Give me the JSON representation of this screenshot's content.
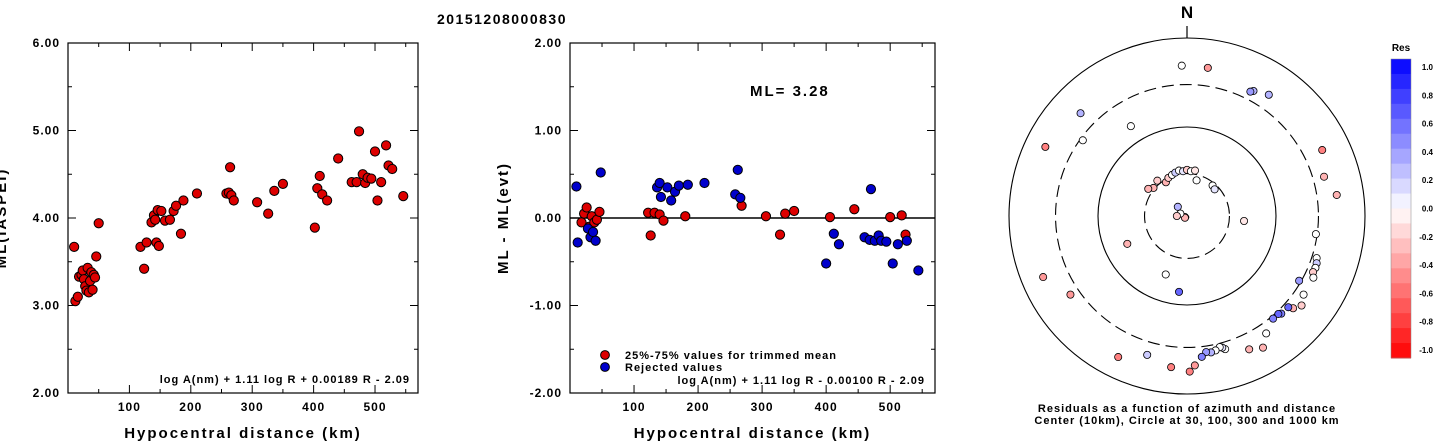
{
  "title": "20151208000830",
  "chart_data": [
    {
      "type": "scatter",
      "xlabel": "Hypocentral distance (km)",
      "ylabel": "ML(IASPEI)",
      "xlim": [
        0,
        570
      ],
      "ylim": [
        2.0,
        6.0
      ],
      "xticks": [
        "100",
        "200",
        "300",
        "400",
        "500"
      ],
      "yticks": [
        "2.00",
        "3.00",
        "4.00",
        "5.00",
        "6.00"
      ],
      "formula": "log A(nm) + 1.11 log R + 0.00189 R - 2.09",
      "series": [
        {
          "color": "#dd0000",
          "points": [
            [
              10,
              3.67
            ],
            [
              12,
              3.05
            ],
            [
              16,
              3.1
            ],
            [
              18,
              3.33
            ],
            [
              22,
              3.35
            ],
            [
              24,
              3.4
            ],
            [
              26,
              3.3
            ],
            [
              28,
              3.22
            ],
            [
              30,
              3.17
            ],
            [
              32,
              3.43
            ],
            [
              34,
              3.15
            ],
            [
              36,
              3.28
            ],
            [
              38,
              3.38
            ],
            [
              40,
              3.18
            ],
            [
              42,
              3.35
            ],
            [
              44,
              3.32
            ],
            [
              46,
              3.56
            ],
            [
              50,
              3.94
            ],
            [
              118,
              3.67
            ],
            [
              124,
              3.42
            ],
            [
              128,
              3.72
            ],
            [
              136,
              3.95
            ],
            [
              140,
              4.03
            ],
            [
              142,
              3.98
            ],
            [
              144,
              3.72
            ],
            [
              146,
              4.09
            ],
            [
              148,
              3.68
            ],
            [
              152,
              4.08
            ],
            [
              158,
              3.97
            ],
            [
              166,
              3.98
            ],
            [
              172,
              4.08
            ],
            [
              176,
              4.14
            ],
            [
              184,
              3.82
            ],
            [
              188,
              4.2
            ],
            [
              210,
              4.28
            ],
            [
              258,
              4.28
            ],
            [
              262,
              4.29
            ],
            [
              264,
              4.58
            ],
            [
              266,
              4.26
            ],
            [
              270,
              4.2
            ],
            [
              308,
              4.18
            ],
            [
              326,
              4.05
            ],
            [
              336,
              4.31
            ],
            [
              350,
              4.39
            ],
            [
              402,
              3.89
            ],
            [
              406,
              4.34
            ],
            [
              410,
              4.48
            ],
            [
              414,
              4.27
            ],
            [
              422,
              4.2
            ],
            [
              440,
              4.68
            ],
            [
              462,
              4.41
            ],
            [
              470,
              4.41
            ],
            [
              474,
              4.99
            ],
            [
              480,
              4.5
            ],
            [
              484,
              4.4
            ],
            [
              488,
              4.46
            ],
            [
              494,
              4.45
            ],
            [
              500,
              4.76
            ],
            [
              504,
              4.2
            ],
            [
              510,
              4.41
            ],
            [
              518,
              4.83
            ],
            [
              522,
              4.6
            ],
            [
              528,
              4.56
            ],
            [
              546,
              4.25
            ]
          ]
        }
      ]
    },
    {
      "type": "scatter",
      "xlabel": "Hypocentral distance (km)",
      "ylabel": "ML - ML(evt)",
      "xlim": [
        0,
        570
      ],
      "ylim": [
        -2.0,
        2.0
      ],
      "xticks": [
        "100",
        "200",
        "300",
        "400",
        "500"
      ],
      "yticks": [
        "-2.00",
        "-1.00",
        "0.00",
        "1.00",
        "2.00"
      ],
      "annotation": "ML= 3.28",
      "formula": "log A(nm) + 1.11 log R - 0.00100 R - 2.09",
      "legend": [
        "25%-75% values for trimmed mean",
        "Rejected values"
      ],
      "series": [
        {
          "name": "25%-75% values for trimmed mean",
          "color": "#dd0000",
          "points": [
            [
              18,
              -0.05
            ],
            [
              22,
              0.05
            ],
            [
              26,
              0.12
            ],
            [
              30,
              -0.1
            ],
            [
              34,
              0.02
            ],
            [
              38,
              -0.05
            ],
            [
              42,
              -0.02
            ],
            [
              46,
              0.07
            ],
            [
              122,
              0.06
            ],
            [
              126,
              -0.2
            ],
            [
              132,
              0.06
            ],
            [
              140,
              0.04
            ],
            [
              146,
              -0.03
            ],
            [
              180,
              0.02
            ],
            [
              268,
              0.14
            ],
            [
              306,
              0.02
            ],
            [
              328,
              -0.19
            ],
            [
              336,
              0.05
            ],
            [
              350,
              0.08
            ],
            [
              406,
              0.01
            ],
            [
              444,
              0.1
            ],
            [
              500,
              0.01
            ],
            [
              518,
              0.03
            ],
            [
              524,
              -0.19
            ]
          ]
        },
        {
          "name": "Rejected values",
          "color": "#0000cc",
          "points": [
            [
              10,
              0.36
            ],
            [
              12,
              -0.28
            ],
            [
              28,
              -0.12
            ],
            [
              32,
              -0.22
            ],
            [
              36,
              -0.16
            ],
            [
              40,
              -0.26
            ],
            [
              48,
              0.52
            ],
            [
              136,
              0.35
            ],
            [
              140,
              0.4
            ],
            [
              142,
              0.24
            ],
            [
              152,
              0.35
            ],
            [
              158,
              0.2
            ],
            [
              164,
              0.3
            ],
            [
              170,
              0.37
            ],
            [
              184,
              0.38
            ],
            [
              210,
              0.4
            ],
            [
              258,
              0.27
            ],
            [
              262,
              0.55
            ],
            [
              266,
              0.23
            ],
            [
              400,
              -0.52
            ],
            [
              412,
              -0.18
            ],
            [
              420,
              -0.3
            ],
            [
              460,
              -0.22
            ],
            [
              468,
              -0.25
            ],
            [
              470,
              0.33
            ],
            [
              476,
              -0.26
            ],
            [
              482,
              -0.2
            ],
            [
              486,
              -0.26
            ],
            [
              494,
              -0.27
            ],
            [
              504,
              -0.52
            ],
            [
              512,
              -0.3
            ],
            [
              526,
              -0.26
            ],
            [
              544,
              -0.6
            ]
          ]
        }
      ]
    },
    {
      "type": "polar-scatter",
      "north_label": "N",
      "caption_line1": "Residuals as a function of azimuth and distance",
      "caption_line2": "Center (10km), Circle at 30, 100, 300 and 1000 km",
      "colorbar_title": "Res",
      "colorbar_ticks": [
        "1.0",
        "0.8",
        "0.6",
        "0.4",
        "0.2",
        "0.0",
        "-0.2",
        "-0.4",
        "-0.6",
        "-0.8",
        "-1.0"
      ],
      "stations": [
        {
          "az": 174,
          "dist": 4,
          "res": 1.0,
          "solid": true
        },
        {
          "az": 245,
          "dist": 8,
          "res": 0.05
        },
        {
          "az": 230,
          "dist": 9,
          "res": -0.3
        },
        {
          "az": 315,
          "dist": 14,
          "res": 0.3
        },
        {
          "az": 290,
          "dist": 12,
          "res": 0.0
        },
        {
          "az": 270,
          "dist": 13,
          "res": -0.2
        },
        {
          "az": 328,
          "dist": 28,
          "res": -0.3
        },
        {
          "az": 334,
          "dist": 30,
          "res": -0.2
        },
        {
          "az": 340,
          "dist": 31,
          "res": 0.0
        },
        {
          "az": 345,
          "dist": 32,
          "res": 0.2
        },
        {
          "az": 350,
          "dist": 33,
          "res": 0.0
        },
        {
          "az": 355,
          "dist": 32,
          "res": 0.1
        },
        {
          "az": 0,
          "dist": 33,
          "res": -0.2
        },
        {
          "az": 5,
          "dist": 32,
          "res": 0.0
        },
        {
          "az": 10,
          "dist": 33,
          "res": -0.1
        },
        {
          "az": 15,
          "dist": 26,
          "res": 0.0
        },
        {
          "az": 40,
          "dist": 28,
          "res": 0.0
        },
        {
          "az": 46,
          "dist": 27,
          "res": 0.1
        },
        {
          "az": 320,
          "dist": 33,
          "res": -0.2
        },
        {
          "az": 310,
          "dist": 31,
          "res": -0.3
        },
        {
          "az": 305,
          "dist": 34,
          "res": -0.3
        },
        {
          "az": 95,
          "dist": 44,
          "res": -0.1
        },
        {
          "az": 200,
          "dist": 50,
          "res": 0.0
        },
        {
          "az": 245,
          "dist": 55,
          "res": -0.3
        },
        {
          "az": 186,
          "dist": 72,
          "res": 0.6
        },
        {
          "az": 328,
          "dist": 155,
          "res": 0.0
        },
        {
          "az": 306,
          "dist": 280,
          "res": 0.0
        },
        {
          "az": 358,
          "dist": 490,
          "res": 0.0
        },
        {
          "az": 8,
          "dist": 480,
          "res": -0.4
        },
        {
          "az": 34,
          "dist": 440,
          "res": 0.3
        },
        {
          "az": 28,
          "dist": 390,
          "res": 0.3
        },
        {
          "az": 27,
          "dist": 370,
          "res": 0.4
        },
        {
          "az": 64,
          "dist": 490,
          "res": -0.5
        },
        {
          "az": 74,
          "dist": 400,
          "res": -0.3
        },
        {
          "az": 82,
          "dist": 500,
          "res": -0.3
        },
        {
          "az": 98,
          "dist": 290,
          "res": 0.0
        },
        {
          "az": 108,
          "dist": 340,
          "res": 0.0
        },
        {
          "az": 110,
          "dist": 355,
          "res": 0.2
        },
        {
          "az": 112,
          "dist": 360,
          "res": 0.0
        },
        {
          "az": 114,
          "dist": 355,
          "res": -0.2
        },
        {
          "az": 116,
          "dist": 380,
          "res": 0.0
        },
        {
          "az": 120,
          "dist": 285,
          "res": 0.4
        },
        {
          "az": 124,
          "dist": 380,
          "res": 0.0
        },
        {
          "az": 128,
          "dist": 430,
          "res": -0.2
        },
        {
          "az": 131,
          "dist": 380,
          "res": -0.3
        },
        {
          "az": 132,
          "dist": 340,
          "res": 0.6
        },
        {
          "az": 136,
          "dist": 335,
          "res": 0.5
        },
        {
          "az": 137,
          "dist": 320,
          "res": 0.6
        },
        {
          "az": 140,
          "dist": 320,
          "res": 0.5
        },
        {
          "az": 146,
          "dist": 390,
          "res": 0.0
        },
        {
          "az": 150,
          "dist": 510,
          "res": -0.3
        },
        {
          "az": 155,
          "dist": 450,
          "res": -0.3
        },
        {
          "az": 164,
          "dist": 360,
          "res": 0.0
        },
        {
          "az": 165,
          "dist": 340,
          "res": 0.1
        },
        {
          "az": 166,
          "dist": 330,
          "res": 0.0
        },
        {
          "az": 168,
          "dist": 350,
          "res": 0.0
        },
        {
          "az": 170,
          "dist": 360,
          "res": 0.3
        },
        {
          "az": 172,
          "dist": 350,
          "res": 0.4
        },
        {
          "az": 174,
          "dist": 390,
          "res": 0.5
        },
        {
          "az": 177,
          "dist": 480,
          "res": -0.4
        },
        {
          "az": 179,
          "dist": 560,
          "res": -0.5
        },
        {
          "az": 186,
          "dist": 510,
          "res": -0.5
        },
        {
          "az": 196,
          "dist": 420,
          "res": 0.2
        },
        {
          "az": 206,
          "dist": 580,
          "res": -0.5
        },
        {
          "az": 236,
          "dist": 380,
          "res": -0.4
        },
        {
          "az": 247,
          "dist": 570,
          "res": -0.4
        },
        {
          "az": 296,
          "dist": 590,
          "res": -0.5
        },
        {
          "az": 314,
          "dist": 460,
          "res": 0.3
        }
      ]
    }
  ]
}
